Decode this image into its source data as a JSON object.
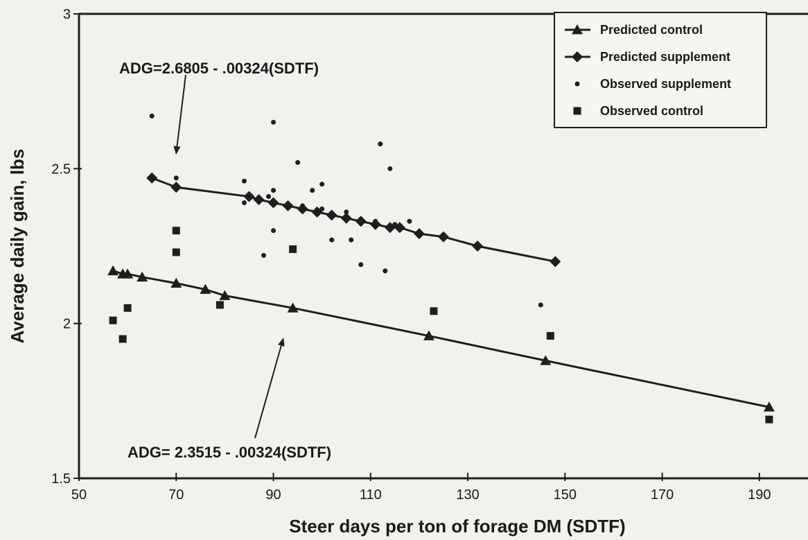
{
  "chart_data": {
    "type": "scatter",
    "xlabel": "Steer days per ton of  forage DM (SDTF)",
    "ylabel": "Average  daily gain, lbs",
    "xlim": [
      50,
      200
    ],
    "ylim": [
      1.5,
      3
    ],
    "x_ticks": [
      50,
      70,
      90,
      110,
      130,
      150,
      170,
      190
    ],
    "y_ticks": [
      1.5,
      2,
      2.5,
      3
    ],
    "y_tick_labels": [
      "1.5",
      "2",
      "2.5",
      "3"
    ],
    "grid": false,
    "legend_position": "top-right",
    "legend": [
      {
        "label": "Predicted control",
        "marker": "triangle-line"
      },
      {
        "label": "Predicted supplement",
        "marker": "diamond-line"
      },
      {
        "label": "Observed supplement",
        "marker": "dot"
      },
      {
        "label": "Observed control",
        "marker": "square"
      }
    ],
    "annotations": [
      {
        "text": "ADG=2.6805 - .00324(SDTF)",
        "arrow_to": [
          70,
          2.55
        ]
      },
      {
        "text": "ADG= 2.3515 - .00324(SDTF)",
        "arrow_to": [
          92,
          1.95
        ]
      }
    ],
    "series": [
      {
        "name": "Predicted control",
        "kind": "line-triangle",
        "x": [
          57,
          59,
          60,
          63,
          70,
          76,
          80,
          94,
          122,
          146,
          192
        ],
        "y": [
          2.17,
          2.16,
          2.16,
          2.15,
          2.13,
          2.11,
          2.09,
          2.05,
          1.96,
          1.88,
          1.73
        ]
      },
      {
        "name": "Predicted supplement",
        "kind": "line-diamond",
        "x": [
          65,
          70,
          85,
          87,
          90,
          93,
          96,
          99,
          102,
          105,
          108,
          111,
          114,
          116,
          120,
          125,
          132,
          148
        ],
        "y": [
          2.47,
          2.44,
          2.41,
          2.4,
          2.39,
          2.38,
          2.37,
          2.36,
          2.35,
          2.34,
          2.33,
          2.32,
          2.31,
          2.31,
          2.29,
          2.28,
          2.25,
          2.2
        ]
      },
      {
        "name": "Observed supplement",
        "kind": "dot",
        "x": [
          65,
          70,
          90,
          84,
          95,
          112,
          114,
          90,
          98,
          100,
          84,
          89,
          96,
          100,
          105,
          111,
          118,
          115,
          90,
          102,
          106,
          88,
          108,
          113,
          145
        ],
        "y": [
          2.67,
          2.47,
          2.65,
          2.46,
          2.52,
          2.58,
          2.5,
          2.43,
          2.43,
          2.45,
          2.39,
          2.41,
          2.38,
          2.37,
          2.36,
          2.33,
          2.33,
          2.32,
          2.3,
          2.27,
          2.27,
          2.22,
          2.19,
          2.17,
          2.06
        ]
      },
      {
        "name": "Observed control",
        "kind": "square",
        "x": [
          70,
          70,
          94,
          57,
          60,
          59,
          79,
          123,
          147,
          192
        ],
        "y": [
          2.3,
          2.23,
          2.24,
          2.01,
          2.05,
          1.95,
          2.06,
          2.04,
          1.96,
          1.69
        ]
      }
    ]
  }
}
